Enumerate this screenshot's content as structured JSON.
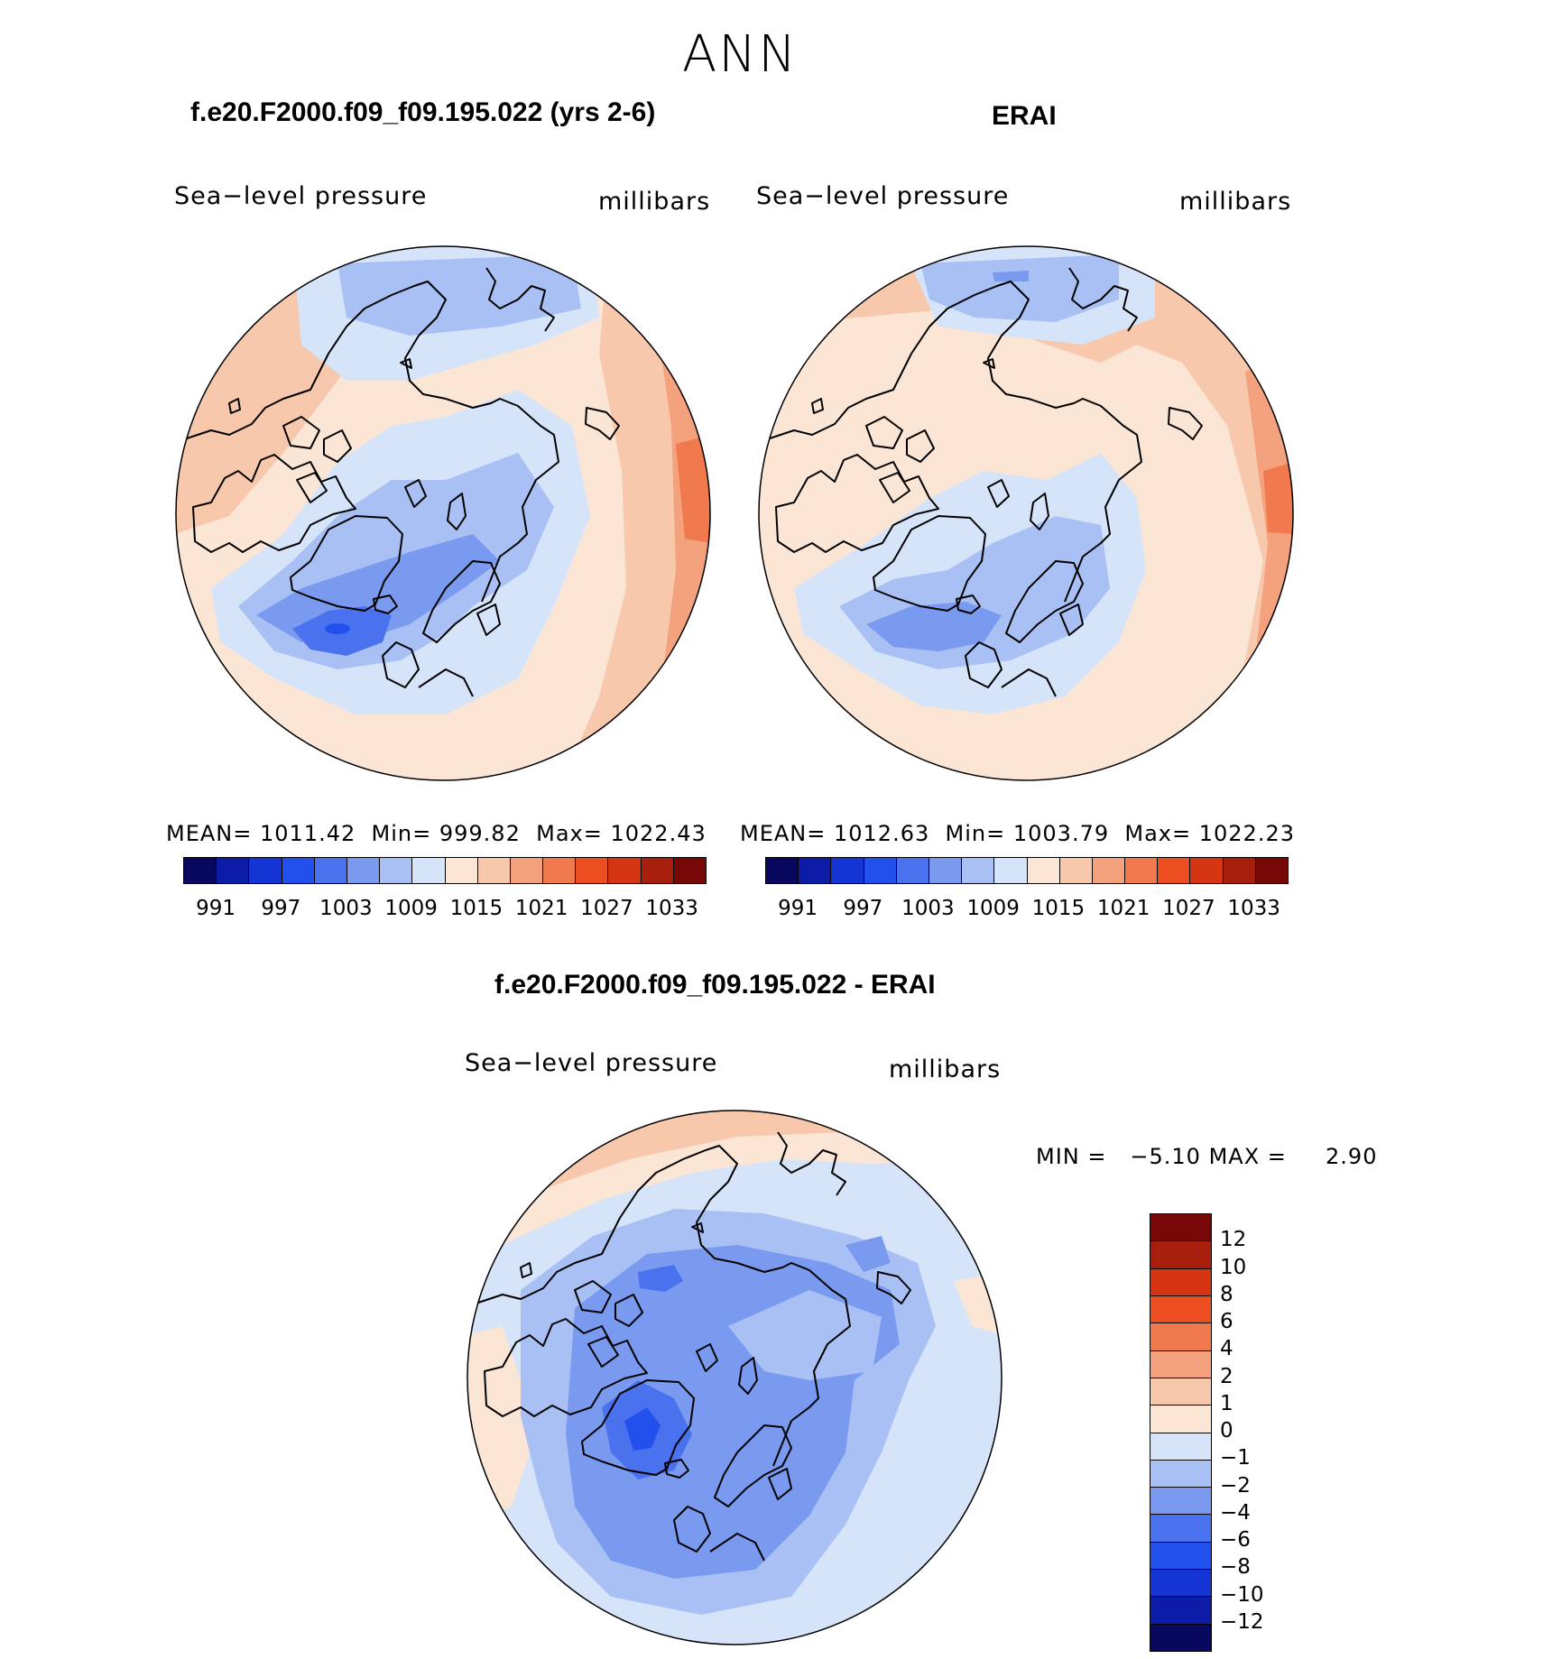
{
  "title": "ANN",
  "panels": {
    "model": {
      "title": "f.e20.F2000.f09_f09.195.022 (yrs 2-6)",
      "variable": "Sea−level pressure",
      "units": "millibars",
      "stats": {
        "mean_label": "MEAN=",
        "mean": "1011.42",
        "min_label": "Min=",
        "min": "999.82",
        "max_label": "Max=",
        "max": "1022.43"
      }
    },
    "obs": {
      "title": "ERAI",
      "variable": "Sea−level pressure",
      "units": "millibars",
      "stats": {
        "mean_label": "MEAN=",
        "mean": "1012.63",
        "min_label": "Min=",
        "min": "1003.79",
        "max_label": "Max=",
        "max": "1022.23"
      }
    },
    "diff": {
      "title": "f.e20.F2000.f09_f09.195.022 - ERAI",
      "variable": "Sea−level pressure",
      "units": "millibars",
      "stats": {
        "min_label": "MIN =",
        "min": "−5.10",
        "max_label": "MAX =",
        "max": "2.90"
      }
    }
  },
  "colorbars": {
    "abs": {
      "colors": [
        "#08085e",
        "#0c1ca6",
        "#1434d4",
        "#2250ec",
        "#4a72ee",
        "#7a9af0",
        "#a9c0f4",
        "#d6e4fa",
        "#fbe6d6",
        "#f8c8ac",
        "#f4a27e",
        "#f07a4e",
        "#ec4e22",
        "#d43412",
        "#a81e0c",
        "#780808"
      ],
      "ticks": [
        "991",
        "997",
        "1003",
        "1009",
        "1015",
        "1021",
        "1027",
        "1033"
      ]
    },
    "diff": {
      "colors": [
        "#780808",
        "#a81e0c",
        "#d43412",
        "#ec4e22",
        "#f07a4e",
        "#f4a27e",
        "#f8c8ac",
        "#fbe6d6",
        "#d6e4fa",
        "#a9c0f4",
        "#7a9af0",
        "#4a72ee",
        "#2250ec",
        "#1434d4",
        "#0c1ca6",
        "#08085e"
      ],
      "ticks": [
        "12",
        "10",
        "8",
        "6",
        "4",
        "2",
        "1",
        "0",
        "−1",
        "−2",
        "−4",
        "−6",
        "−8",
        "−10",
        "−12"
      ]
    }
  }
}
